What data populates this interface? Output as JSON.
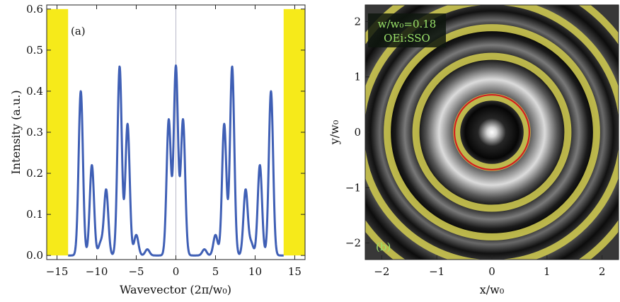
{
  "colors": {
    "curve": "#3f5fb5",
    "highlight": "#f6ea1a",
    "ring_yellow": "#c9c34f",
    "ring_red": "#d22020",
    "info_text": "#9be36a",
    "info_bg": "#0e160e"
  },
  "chart_data": [
    {
      "type": "line",
      "panel_label": "(a)",
      "xlabel": "Wavevector (2π/w₀)",
      "ylabel": "Intensity (a.u.)",
      "xlim": [
        -16.3,
        16.3
      ],
      "ylim": [
        -0.01,
        0.61
      ],
      "x_ticks": [
        -15,
        -10,
        -5,
        0,
        5,
        10,
        15
      ],
      "x_tick_labels": [
        "−15",
        "−10",
        "−5",
        "0",
        "5",
        "10",
        "15"
      ],
      "y_ticks": [
        0.0,
        0.1,
        0.2,
        0.3,
        0.4,
        0.5,
        0.6
      ],
      "y_tick_labels": [
        "0.0",
        "0.1",
        "0.2",
        "0.3",
        "0.4",
        "0.5",
        "0.6"
      ],
      "grid": false,
      "vertical_reference_line_x": 0,
      "highlight_bands": [
        {
          "x_start": -16.3,
          "x_end": -13.6,
          "y_top": 0.6
        },
        {
          "x_start": 13.6,
          "x_end": 16.3,
          "y_top": 0.6
        }
      ],
      "peaks": [
        {
          "x": 0.0,
          "y": 0.46
        },
        {
          "x": -0.9,
          "y": 0.33
        },
        {
          "x": 0.9,
          "y": 0.33
        },
        {
          "x": -7.1,
          "y": 0.46
        },
        {
          "x": 7.1,
          "y": 0.46
        },
        {
          "x": -6.1,
          "y": 0.32
        },
        {
          "x": 6.1,
          "y": 0.32
        },
        {
          "x": -12.0,
          "y": 0.4
        },
        {
          "x": 12.0,
          "y": 0.4
        },
        {
          "x": -10.6,
          "y": 0.22
        },
        {
          "x": 10.6,
          "y": 0.22
        },
        {
          "x": -8.8,
          "y": 0.16
        },
        {
          "x": 8.8,
          "y": 0.16
        },
        {
          "x": -5.0,
          "y": 0.05
        },
        {
          "x": 5.0,
          "y": 0.05
        },
        {
          "x": -3.6,
          "y": 0.015
        },
        {
          "x": 3.6,
          "y": 0.015
        },
        {
          "x": -9.5,
          "y": 0.03
        },
        {
          "x": 9.5,
          "y": 0.03
        }
      ]
    },
    {
      "type": "heatmap",
      "panel_label": "(b)",
      "xlabel": "x/w₀",
      "ylabel": "y/w₀",
      "xlim": [
        -2.3,
        2.3
      ],
      "ylim": [
        -2.3,
        2.3
      ],
      "x_ticks": [
        -2,
        -1,
        0,
        1,
        2
      ],
      "x_tick_labels": [
        "−2",
        "−1",
        "0",
        "1",
        "2"
      ],
      "y_ticks": [
        -2,
        -1,
        0,
        1,
        2
      ],
      "y_tick_labels": [
        "−2",
        "−1",
        "0",
        "1",
        "2"
      ],
      "annotation": "w/w₀=0.18",
      "annotation_line2": "OEi:SSO",
      "red_ring_radius": 0.68,
      "yellow_ring_radii": [
        0.64,
        1.38,
        1.9,
        2.38,
        2.86
      ],
      "bright_rings": [
        {
          "r": 0.0,
          "brightness": 1.0
        },
        {
          "r": 1.0,
          "brightness": 0.85
        },
        {
          "r": 1.64,
          "brightness": 0.5
        },
        {
          "r": 2.14,
          "brightness": 0.4
        }
      ]
    }
  ]
}
